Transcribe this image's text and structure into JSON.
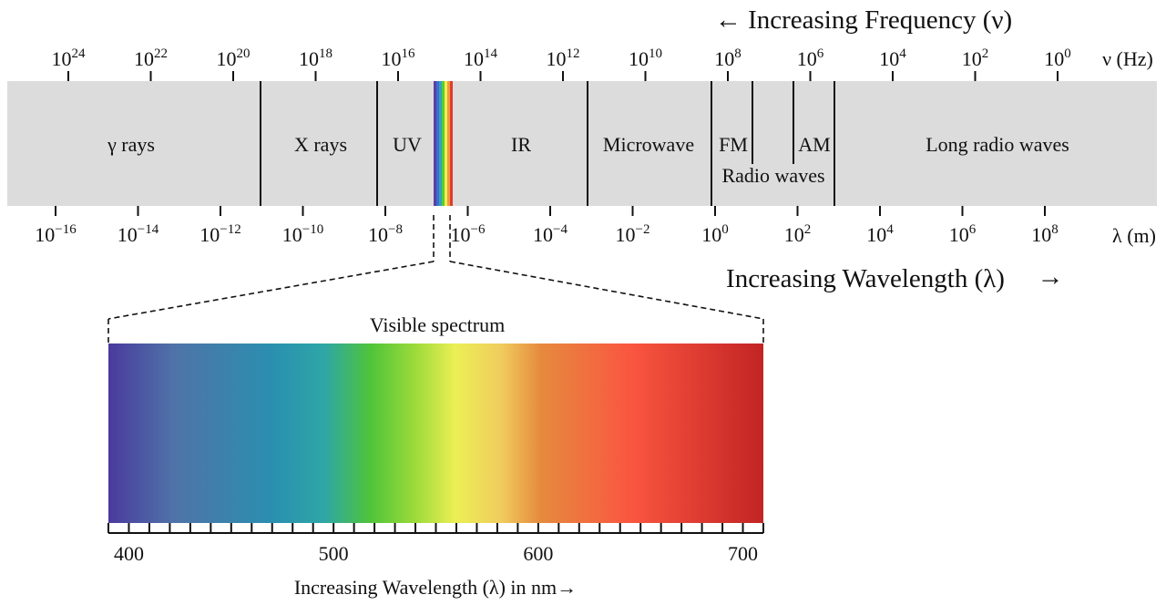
{
  "frequency_header": "← Increasing Frequency (ν)",
  "frequency_unit": "ν (Hz)",
  "frequency_ticks": [
    {
      "base": "10",
      "exp": "24"
    },
    {
      "base": "10",
      "exp": "22"
    },
    {
      "base": "10",
      "exp": "20"
    },
    {
      "base": "10",
      "exp": "18"
    },
    {
      "base": "10",
      "exp": "16"
    },
    {
      "base": "10",
      "exp": "14"
    },
    {
      "base": "10",
      "exp": "12"
    },
    {
      "base": "10",
      "exp": "10"
    },
    {
      "base": "10",
      "exp": "8"
    },
    {
      "base": "10",
      "exp": "6"
    },
    {
      "base": "10",
      "exp": "4"
    },
    {
      "base": "10",
      "exp": "2"
    },
    {
      "base": "10",
      "exp": "0"
    }
  ],
  "wavelength_unit": "λ (m)",
  "wavelength_ticks": [
    {
      "base": "10",
      "exp": "−16"
    },
    {
      "base": "10",
      "exp": "−14"
    },
    {
      "base": "10",
      "exp": "−12"
    },
    {
      "base": "10",
      "exp": "−10"
    },
    {
      "base": "10",
      "exp": "−8"
    },
    {
      "base": "10",
      "exp": "−6"
    },
    {
      "base": "10",
      "exp": "−4"
    },
    {
      "base": "10",
      "exp": "−2"
    },
    {
      "base": "10",
      "exp": "0"
    },
    {
      "base": "10",
      "exp": "2"
    },
    {
      "base": "10",
      "exp": "4"
    },
    {
      "base": "10",
      "exp": "6"
    },
    {
      "base": "10",
      "exp": "8"
    }
  ],
  "regions": {
    "gamma": "γ rays",
    "xray": "X rays",
    "uv": "UV",
    "ir": "IR",
    "microwave": "Microwave",
    "fm": "FM",
    "am": "AM",
    "radio": "Radio waves",
    "long_radio": "Long radio waves"
  },
  "wavelength_header": "Increasing Wavelength (λ)",
  "wavelength_arrow": "→",
  "visible": {
    "title": "Visible spectrum",
    "axis_labels": [
      "400",
      "500",
      "600",
      "700"
    ],
    "caption": "Increasing Wavelength (λ) in nm→"
  },
  "colors": {
    "band_fill": "#dcdcdc",
    "violet": "#4a3a9e",
    "blue": "#2a8fb0",
    "green": "#5ccc33",
    "yellow": "#ecef55",
    "orange": "#e68a3e",
    "red": "#c22424"
  }
}
